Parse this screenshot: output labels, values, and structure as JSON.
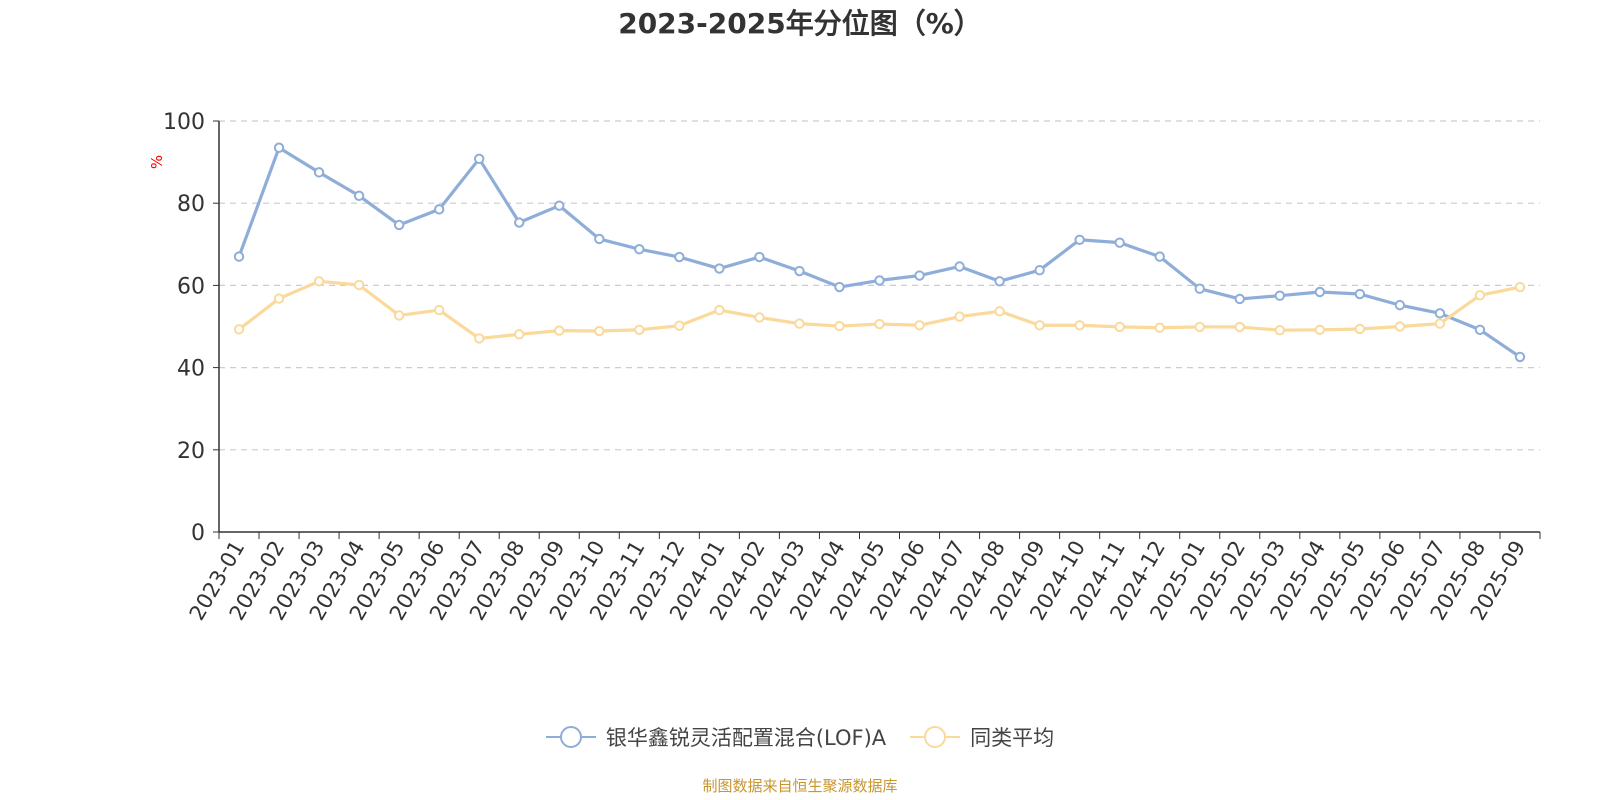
{
  "chart_data": {
    "type": "line",
    "title": "2023-2025年分位图（%）",
    "ylabel": "%",
    "ylim": [
      0,
      100
    ],
    "yticks": [
      "0",
      "20",
      "40",
      "60",
      "80",
      "100"
    ],
    "grid": true,
    "legend_position": "bottom",
    "categories": [
      "2023-01",
      "2023-02",
      "2023-03",
      "2023-04",
      "2023-05",
      "2023-06",
      "2023-07",
      "2023-08",
      "2023-09",
      "2023-10",
      "2023-11",
      "2023-12",
      "2024-01",
      "2024-02",
      "2024-03",
      "2024-04",
      "2024-05",
      "2024-06",
      "2024-07",
      "2024-08",
      "2024-09",
      "2024-10",
      "2024-11",
      "2024-12",
      "2025-01",
      "2025-02",
      "2025-03",
      "2025-04",
      "2025-05",
      "2025-06",
      "2025-07",
      "2025-08",
      "2025-09"
    ],
    "series": [
      {
        "name": "银华鑫锐灵活配置混合(LOF)A",
        "color": "#8eadd8",
        "values": [
          67.0,
          93.5,
          87.5,
          81.8,
          74.7,
          78.5,
          90.8,
          75.3,
          79.4,
          71.3,
          68.8,
          66.9,
          64.1,
          66.9,
          63.5,
          59.6,
          61.2,
          62.4,
          64.6,
          61.0,
          63.7,
          71.1,
          70.4,
          67.0,
          59.2,
          56.7,
          57.5,
          58.4,
          57.9,
          55.2,
          53.2,
          49.2,
          42.6
        ]
      },
      {
        "name": "同类平均",
        "color": "#fad99b",
        "values": [
          49.3,
          56.8,
          61.0,
          60.1,
          52.7,
          54.0,
          47.1,
          48.1,
          49.0,
          48.9,
          49.2,
          50.2,
          54.0,
          52.2,
          50.7,
          50.1,
          50.6,
          50.3,
          52.4,
          53.7,
          50.3,
          50.3,
          49.9,
          49.7,
          49.9,
          49.9,
          49.1,
          49.2,
          49.4,
          50.0,
          50.7,
          57.6,
          59.6
        ]
      }
    ]
  },
  "footer": {
    "source": "制图数据来自恒生聚源数据库"
  }
}
